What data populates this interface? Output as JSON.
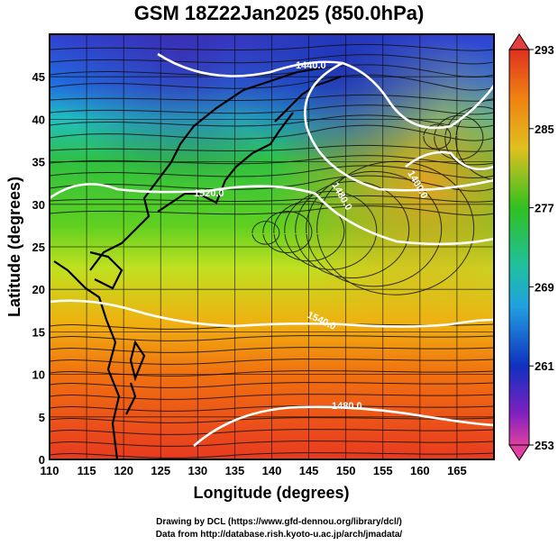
{
  "title": "GSM 18Z22Jan2025 (850.0hPa)",
  "xaxis": {
    "label": "Longitude (degrees)",
    "range": [
      110,
      170
    ],
    "ticks": [
      "110",
      "115",
      "120",
      "125",
      "130",
      "135",
      "140",
      "145",
      "150",
      "155",
      "160",
      "165"
    ]
  },
  "yaxis": {
    "label": "Latitude  (degrees)",
    "range": [
      0,
      50
    ],
    "ticks": [
      "0",
      "5",
      "10",
      "15",
      "20",
      "25",
      "30",
      "35",
      "40",
      "45"
    ]
  },
  "colorbar": {
    "ticks": [
      "253",
      "261",
      "269",
      "277",
      "285",
      "293"
    ],
    "colors": {
      "min": "#e040a0",
      "low": "#1030c0",
      "mid": "#20c020",
      "high": "#f08010",
      "max": "#e03020"
    }
  },
  "contour_labels": [
    "1440.0",
    "1480.0",
    "1400.0",
    "1520.0",
    "1540.0",
    "1480.0"
  ],
  "footer": {
    "line1": "Drawing by DCL (https://www.gfd-dennou.org/library/dcl/)",
    "line2": "Data from http://database.rish.kyoto-u.ac.jp/arch/jmadata/"
  }
}
